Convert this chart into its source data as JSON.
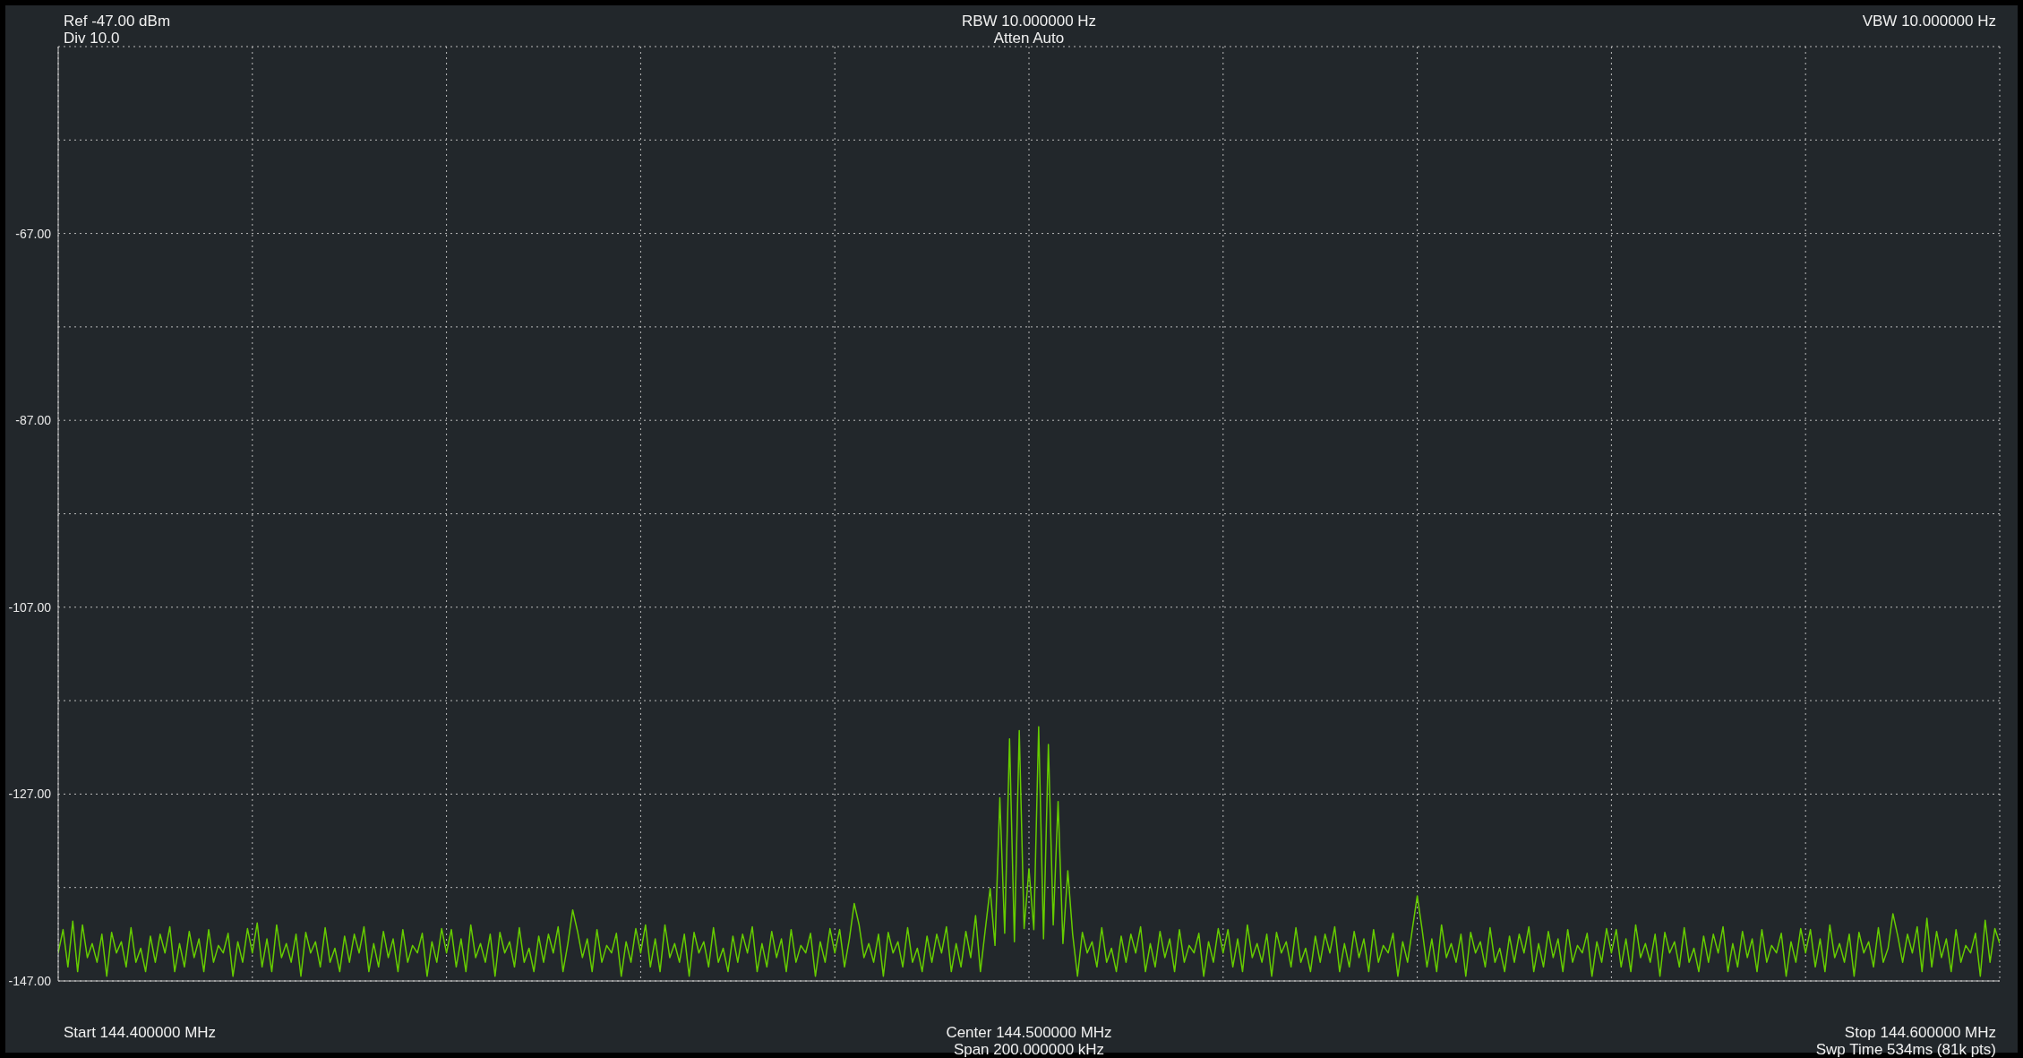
{
  "chart_data": {
    "type": "line",
    "annotations": [
      "Ref -47.00 dBm",
      "Div 10.0",
      "RBW 10.000000 Hz",
      "Atten Auto",
      "VBW 10.000000 Hz",
      "Start 144.400000 MHz",
      "Center 144.500000 MHz",
      "Span 200.000000 kHz",
      "Stop 144.600000 MHz",
      "Swp Time 534ms (81k pts)"
    ],
    "categories": [
      null,
      null,
      null,
      null,
      null,
      null,
      null,
      null,
      null,
      null,
      null,
      null,
      null,
      null,
      null,
      null,
      null,
      null,
      null,
      null,
      null,
      null,
      null,
      null,
      null,
      null,
      null,
      null,
      null,
      null,
      null,
      null,
      null,
      null,
      null,
      null,
      null,
      null,
      null,
      null,
      null,
      null,
      null,
      null,
      null,
      null,
      null,
      null,
      null,
      null,
      null,
      null,
      null,
      null,
      null,
      null,
      null,
      null,
      null,
      null,
      null,
      null,
      null,
      null,
      null,
      null,
      null,
      null,
      null,
      null,
      null,
      null,
      null,
      null,
      null,
      null,
      null,
      null,
      null,
      null,
      null,
      null,
      null,
      null,
      null,
      null,
      null,
      null,
      null,
      null,
      null,
      null,
      null,
      null,
      null,
      null,
      null,
      null,
      null,
      null,
      null,
      null,
      null,
      null,
      null,
      null,
      null,
      null,
      null,
      null,
      null,
      null,
      null,
      null,
      null,
      null,
      null,
      null,
      null,
      null,
      null,
      null,
      null,
      null,
      null,
      null,
      null,
      null,
      null,
      null,
      null,
      null,
      null,
      null,
      null,
      null,
      null,
      null,
      null,
      null,
      null,
      null,
      null,
      null,
      null,
      null,
      null,
      null,
      null,
      null,
      null,
      null,
      null,
      null,
      null,
      null,
      null,
      null,
      null,
      null,
      null,
      null,
      null,
      null,
      null,
      null,
      null,
      null,
      null,
      null,
      null,
      null,
      null,
      null,
      null,
      null,
      null,
      null,
      null,
      null,
      null,
      null,
      null,
      null,
      null,
      null,
      null,
      null,
      null,
      null,
      null,
      null,
      null,
      null,
      null,
      null,
      null,
      null,
      null,
      null,
      null,
      null,
      null,
      null,
      null,
      null,
      null,
      null,
      null,
      null,
      null,
      null,
      null,
      null,
      null,
      null,
      null,
      null,
      null,
      null,
      null,
      null,
      null,
      null,
      null,
      null,
      null,
      null,
      null,
      null,
      null,
      null,
      null,
      null,
      null,
      null,
      null,
      null,
      null,
      null,
      null,
      null,
      null,
      null,
      null,
      null,
      null,
      null,
      null,
      null,
      null,
      null,
      null,
      null,
      null,
      null,
      null,
      null,
      null,
      null,
      null,
      null,
      null,
      null,
      null,
      null,
      null,
      null,
      null,
      null,
      null,
      null,
      null,
      null,
      null,
      null,
      null,
      null,
      null,
      null,
      null,
      null,
      null,
      null,
      null,
      null,
      null,
      null,
      null,
      null,
      null,
      null,
      null,
      null,
      null,
      null,
      null,
      null,
      null,
      null,
      null,
      null,
      null,
      null,
      null,
      null,
      null,
      null,
      null,
      null,
      null,
      null,
      null,
      null,
      null,
      null,
      null,
      null,
      null,
      null,
      null,
      null,
      null,
      null,
      null,
      null,
      null,
      null,
      null,
      null,
      null,
      null,
      null,
      null,
      null,
      null,
      null,
      null,
      null,
      null,
      null,
      null,
      null,
      null,
      null,
      null,
      null,
      null,
      null,
      null,
      null,
      null,
      null,
      null,
      null,
      null,
      null,
      null,
      null,
      null,
      null,
      null,
      null,
      null,
      null,
      null,
      null,
      null,
      null,
      null,
      null,
      null,
      null,
      null,
      null,
      null,
      null,
      null,
      null,
      null,
      null,
      null,
      null,
      null,
      null,
      null,
      null,
      null,
      null,
      null,
      null,
      null,
      null,
      null,
      null,
      null,
      null,
      null,
      null,
      null,
      null
    ],
    "series": [
      {
        "color": "#66cc00",
        "values": [
          -144,
          -141.5,
          -145.5,
          -140.6,
          -146,
          -141,
          -144.5,
          -143,
          -145,
          -142,
          -146.5,
          -141.8,
          -144,
          -142.8,
          -145.5,
          -141.3,
          -145,
          -143.5,
          -146,
          -142.2,
          -145,
          -142,
          -144,
          -141.2,
          -146,
          -143,
          -145.5,
          -141.7,
          -144.5,
          -142.5,
          -146,
          -141.5,
          -145,
          -143.2,
          -144,
          -141.9,
          -146.5,
          -142.8,
          -145,
          -141.4,
          -144,
          -140.8,
          -145.5,
          -142.5,
          -146,
          -141,
          -144.5,
          -143,
          -145,
          -142,
          -146.5,
          -141.8,
          -144,
          -142.8,
          -145.5,
          -141.3,
          -145,
          -143.5,
          -146,
          -142.2,
          -145,
          -142,
          -144,
          -141.2,
          -146,
          -143,
          -145.5,
          -141.7,
          -144.5,
          -142.5,
          -146,
          -141.5,
          -145,
          -143.2,
          -144,
          -141.9,
          -146.5,
          -142.8,
          -145,
          -141.4,
          -144,
          -141.5,
          -145.5,
          -142.5,
          -146,
          -141,
          -144.5,
          -143,
          -145,
          -142,
          -146.5,
          -141.8,
          -144,
          -142.8,
          -145.5,
          -141.3,
          -145,
          -143.5,
          -146,
          -142.2,
          -145,
          -142,
          -144,
          -141.2,
          -146,
          -143,
          -139.4,
          -141.7,
          -144.5,
          -142.5,
          -146,
          -141.5,
          -145,
          -143.2,
          -144,
          -141.9,
          -146.5,
          -142.8,
          -145,
          -141.4,
          -144,
          -141,
          -145.5,
          -142.5,
          -146,
          -141,
          -144.5,
          -143,
          -145,
          -142,
          -146.5,
          -141.8,
          -144,
          -142.8,
          -145.5,
          -141.3,
          -145,
          -143.5,
          -146,
          -142.2,
          -145,
          -142,
          -144,
          -141.2,
          -146,
          -143,
          -145.5,
          -141.7,
          -144.5,
          -142.5,
          -146,
          -141.5,
          -145,
          -143.2,
          -144,
          -141.9,
          -146.5,
          -142.8,
          -145,
          -141.4,
          -144,
          -141.5,
          -145.5,
          -142.5,
          -138.7,
          -141,
          -144.5,
          -143,
          -145,
          -142,
          -146.5,
          -141.8,
          -144,
          -142.8,
          -145.5,
          -141.3,
          -145,
          -143.5,
          -146,
          -142.2,
          -145,
          -142,
          -144,
          -141.2,
          -146,
          -143,
          -145.5,
          -141.7,
          -144.5,
          -140,
          -146,
          -141.5,
          -137.1,
          -143.2,
          -127.4,
          -141.9,
          -121.1,
          -142.8,
          -120.2,
          -141.4,
          -135,
          -141.5,
          -119.8,
          -142.5,
          -121.7,
          -141,
          -127.8,
          -143,
          -135.2,
          -142,
          -146.5,
          -141.8,
          -144,
          -142.8,
          -145.5,
          -141.3,
          -145,
          -143.5,
          -146,
          -142.2,
          -145,
          -142,
          -144,
          -141.2,
          -146,
          -143,
          -145.5,
          -141.7,
          -144.5,
          -142.5,
          -146,
          -141.5,
          -145,
          -143.2,
          -144,
          -141.9,
          -146.5,
          -142.8,
          -145,
          -141.4,
          -144,
          -141.5,
          -145.5,
          -142.5,
          -146,
          -141,
          -144.5,
          -143,
          -145,
          -142,
          -146.5,
          -141.8,
          -144,
          -142.8,
          -145.5,
          -141.3,
          -145,
          -143.5,
          -146,
          -142.2,
          -145,
          -142,
          -144,
          -141.2,
          -146,
          -143,
          -145.5,
          -141.7,
          -144.5,
          -142.5,
          -146,
          -141.5,
          -145,
          -143.2,
          -144,
          -141.9,
          -146.5,
          -142.8,
          -145,
          -141.4,
          -137.9,
          -141.5,
          -145.5,
          -142.5,
          -146,
          -141,
          -144.5,
          -143,
          -145,
          -142,
          -146.5,
          -141.8,
          -144,
          -142.8,
          -145.5,
          -141.3,
          -145,
          -143.5,
          -146,
          -142.2,
          -145,
          -142,
          -144,
          -141.2,
          -146,
          -143,
          -145.5,
          -141.7,
          -144.5,
          -142.5,
          -146,
          -141.5,
          -145,
          -143.2,
          -144,
          -141.9,
          -146.5,
          -142.8,
          -145,
          -141.4,
          -144,
          -141.5,
          -145.5,
          -142.5,
          -146,
          -141,
          -144.5,
          -143,
          -145,
          -142,
          -146.5,
          -141.8,
          -144,
          -142.8,
          -145.5,
          -141.3,
          -145,
          -143.5,
          -146,
          -142.2,
          -145,
          -142,
          -144,
          -141.2,
          -146,
          -143,
          -145.5,
          -141.7,
          -144.5,
          -142.5,
          -146,
          -141.5,
          -145,
          -143.2,
          -144,
          -141.9,
          -146.5,
          -142.8,
          -145,
          -141.4,
          -144,
          -141.5,
          -145.5,
          -142.5,
          -146,
          -141,
          -144.5,
          -143,
          -145,
          -142,
          -146.5,
          -141.8,
          -144,
          -142.8,
          -145.5,
          -141.3,
          -145,
          -143.5,
          -139.8,
          -142.2,
          -145,
          -142,
          -144,
          -141.2,
          -146,
          -140.3,
          -145.5,
          -141.7,
          -144.5,
          -142.5,
          -146,
          -141.5,
          -145,
          -143.2,
          -144,
          -141.9,
          -146.5,
          -140.5,
          -145,
          -141.4,
          -143
        ]
      }
    ],
    "ylim": [
      -147,
      -47
    ],
    "yticks": [
      {
        "value": -147,
        "label": "-147.00"
      },
      {
        "value": -137,
        "label": null
      },
      {
        "value": -127,
        "label": "-127.00"
      },
      {
        "value": -117,
        "label": null
      },
      {
        "value": -107,
        "label": "-107.00"
      },
      {
        "value": -97,
        "label": null
      },
      {
        "value": -87,
        "label": "-87.00"
      },
      {
        "value": -77,
        "label": null
      },
      {
        "value": -67,
        "label": "-67.00"
      },
      {
        "value": -57,
        "label": null
      },
      {
        "value": -47,
        "label": null
      }
    ],
    "tick_labels": "y",
    "grid": true
  }
}
